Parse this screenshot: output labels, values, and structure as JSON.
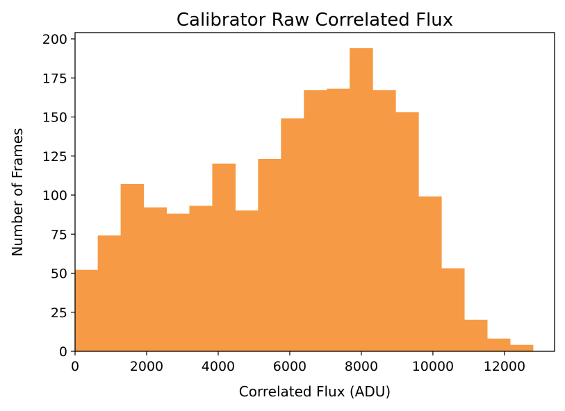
{
  "chart_data": {
    "type": "bar",
    "subtype": "histogram",
    "title": "Calibrator Raw Correlated Flux",
    "xlabel": "Correlated Flux (ADU)",
    "ylabel": "Number of Frames",
    "xlim": [
      0,
      13400
    ],
    "ylim": [
      0,
      204
    ],
    "x_ticks": [
      0,
      2000,
      4000,
      6000,
      8000,
      10000,
      12000
    ],
    "y_ticks": [
      0,
      25,
      50,
      75,
      100,
      125,
      150,
      175,
      200
    ],
    "bin_edges": [
      0,
      640,
      1280,
      1920,
      2560,
      3200,
      3840,
      4480,
      5120,
      5760,
      6400,
      7040,
      7680,
      8320,
      8960,
      9600,
      10240,
      10880,
      11520,
      12160,
      12800
    ],
    "values": [
      52,
      74,
      107,
      92,
      88,
      93,
      120,
      90,
      123,
      149,
      167,
      168,
      194,
      167,
      153,
      99,
      53,
      20,
      8,
      4
    ],
    "color": "#f79a45",
    "grid": false,
    "legend": "none"
  }
}
